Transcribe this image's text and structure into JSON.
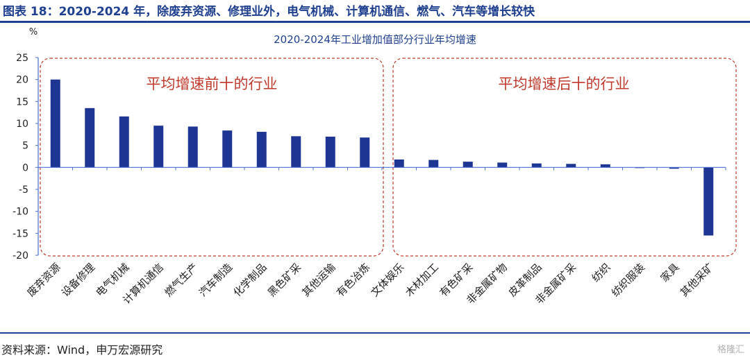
{
  "figure_title": "图表 18：2020-2024 年，除废弃资源、修理业外，电气机械、计算机通信、燃气、汽车等增长较快",
  "source_note": "资料来源：Wind，申万宏源研究",
  "watermark": "格隆汇",
  "colors": {
    "bar": "#1f3593",
    "brand": "#1f3f8f",
    "annotation": "#c0392b",
    "box_border": "#c0392b"
  },
  "annotations": {
    "top_group": "平均增速前十的行业",
    "bottom_group": "平均增速后十的行业"
  },
  "chart_data": {
    "type": "bar",
    "title": "2020-2024年工业增加值部分行业年均增速",
    "ylabel": "%",
    "xlabel": "",
    "ylim": [
      -20,
      25
    ],
    "yticks": [
      25,
      20,
      15,
      10,
      5,
      0,
      -5,
      -10,
      -15,
      -20
    ],
    "grid": false,
    "legend": "none",
    "categories": [
      "废弃资源",
      "设备修理",
      "电气机械",
      "计算机通信",
      "燃气生产",
      "汽车制造",
      "化学制品",
      "黑色矿采",
      "其他运输",
      "有色冶炼",
      "文体娱乐",
      "木材加工",
      "有色矿采",
      "非金属矿物",
      "皮革制品",
      "非金属矿采",
      "纺织",
      "纺织服装",
      "家具",
      "其他采矿"
    ],
    "values": [
      20.0,
      13.5,
      11.6,
      9.5,
      9.3,
      8.4,
      8.1,
      7.1,
      7.0,
      6.8,
      1.8,
      1.7,
      1.3,
      1.1,
      0.9,
      0.8,
      0.7,
      -0.1,
      -0.3,
      -15.5
    ]
  }
}
